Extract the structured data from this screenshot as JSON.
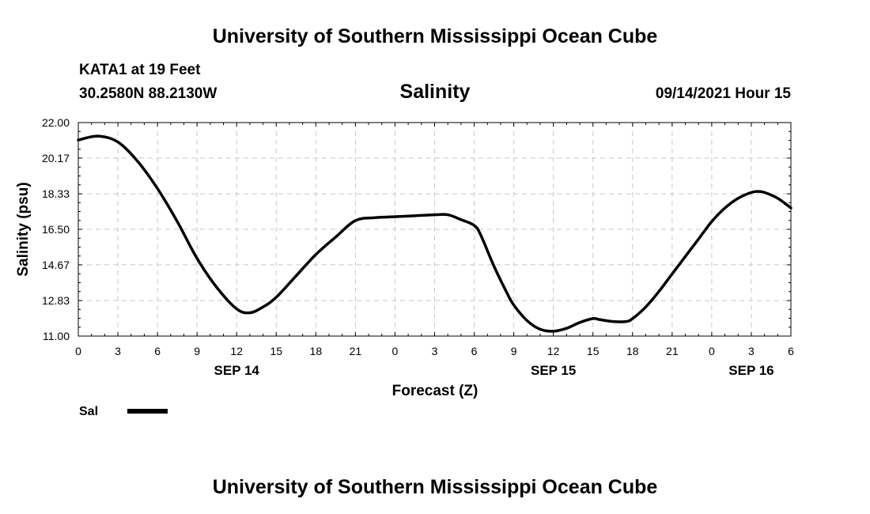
{
  "header": {
    "title": "University of Southern Mississippi Ocean Cube",
    "station": "KATA1 at 19 Feet",
    "location": "30.2580N  88.2130W",
    "variable": "Salinity",
    "timestamp": "09/14/2021 Hour 15"
  },
  "footer": {
    "title": "University of Southern Mississippi Ocean Cube"
  },
  "legend": {
    "label": "Sal"
  },
  "chart_data": {
    "type": "line",
    "xlabel": "Forecast (Z)",
    "ylabel": "Salinity (psu)",
    "x_unit": "hours from 2021-09-14 00Z",
    "xlim": [
      0,
      54
    ],
    "ylim": [
      11.0,
      22.0
    ],
    "grid": true,
    "legend_position": "bottom-left",
    "y_ticks": [
      "11.00",
      "12.83",
      "14.67",
      "16.50",
      "18.33",
      "20.17",
      "22.00"
    ],
    "x_ticks": [
      {
        "x": 0,
        "label": "0"
      },
      {
        "x": 3,
        "label": "3"
      },
      {
        "x": 6,
        "label": "6"
      },
      {
        "x": 9,
        "label": "9"
      },
      {
        "x": 12,
        "label": "12"
      },
      {
        "x": 15,
        "label": "15"
      },
      {
        "x": 18,
        "label": "18"
      },
      {
        "x": 21,
        "label": "21"
      },
      {
        "x": 24,
        "label": "0"
      },
      {
        "x": 27,
        "label": "3"
      },
      {
        "x": 30,
        "label": "6"
      },
      {
        "x": 33,
        "label": "9"
      },
      {
        "x": 36,
        "label": "12"
      },
      {
        "x": 39,
        "label": "15"
      },
      {
        "x": 42,
        "label": "18"
      },
      {
        "x": 45,
        "label": "21"
      },
      {
        "x": 48,
        "label": "0"
      },
      {
        "x": 51,
        "label": "3"
      },
      {
        "x": 54,
        "label": "6"
      }
    ],
    "date_labels": [
      {
        "x": 12,
        "label": "SEP 14"
      },
      {
        "x": 36,
        "label": "SEP 15"
      },
      {
        "x": 51,
        "label": "SEP 16"
      }
    ],
    "series": [
      {
        "name": "Sal",
        "color": "#000000",
        "x": [
          0,
          1.5,
          3,
          4.5,
          6,
          7.5,
          9,
          10.5,
          12,
          13,
          14,
          15,
          16.5,
          18,
          19.5,
          21,
          22.5,
          24,
          25.5,
          27,
          28,
          29,
          30,
          30.5,
          31.5,
          32.5,
          33,
          34,
          35,
          36,
          37,
          38,
          39,
          39.5,
          40.5,
          41.5,
          42,
          43,
          44,
          45,
          46,
          47,
          48,
          49,
          50,
          51,
          51.5,
          52,
          53,
          54
        ],
        "y": [
          21.1,
          21.3,
          21.0,
          20.0,
          18.6,
          16.9,
          15.0,
          13.5,
          12.4,
          12.2,
          12.5,
          13.0,
          14.1,
          15.2,
          16.1,
          16.95,
          17.1,
          17.15,
          17.2,
          17.25,
          17.25,
          17.0,
          16.7,
          16.2,
          14.6,
          13.2,
          12.6,
          11.8,
          11.35,
          11.25,
          11.4,
          11.7,
          11.9,
          11.85,
          11.75,
          11.75,
          11.9,
          12.5,
          13.3,
          14.2,
          15.1,
          16.0,
          16.9,
          17.6,
          18.1,
          18.4,
          18.45,
          18.4,
          18.1,
          17.6
        ]
      }
    ]
  }
}
